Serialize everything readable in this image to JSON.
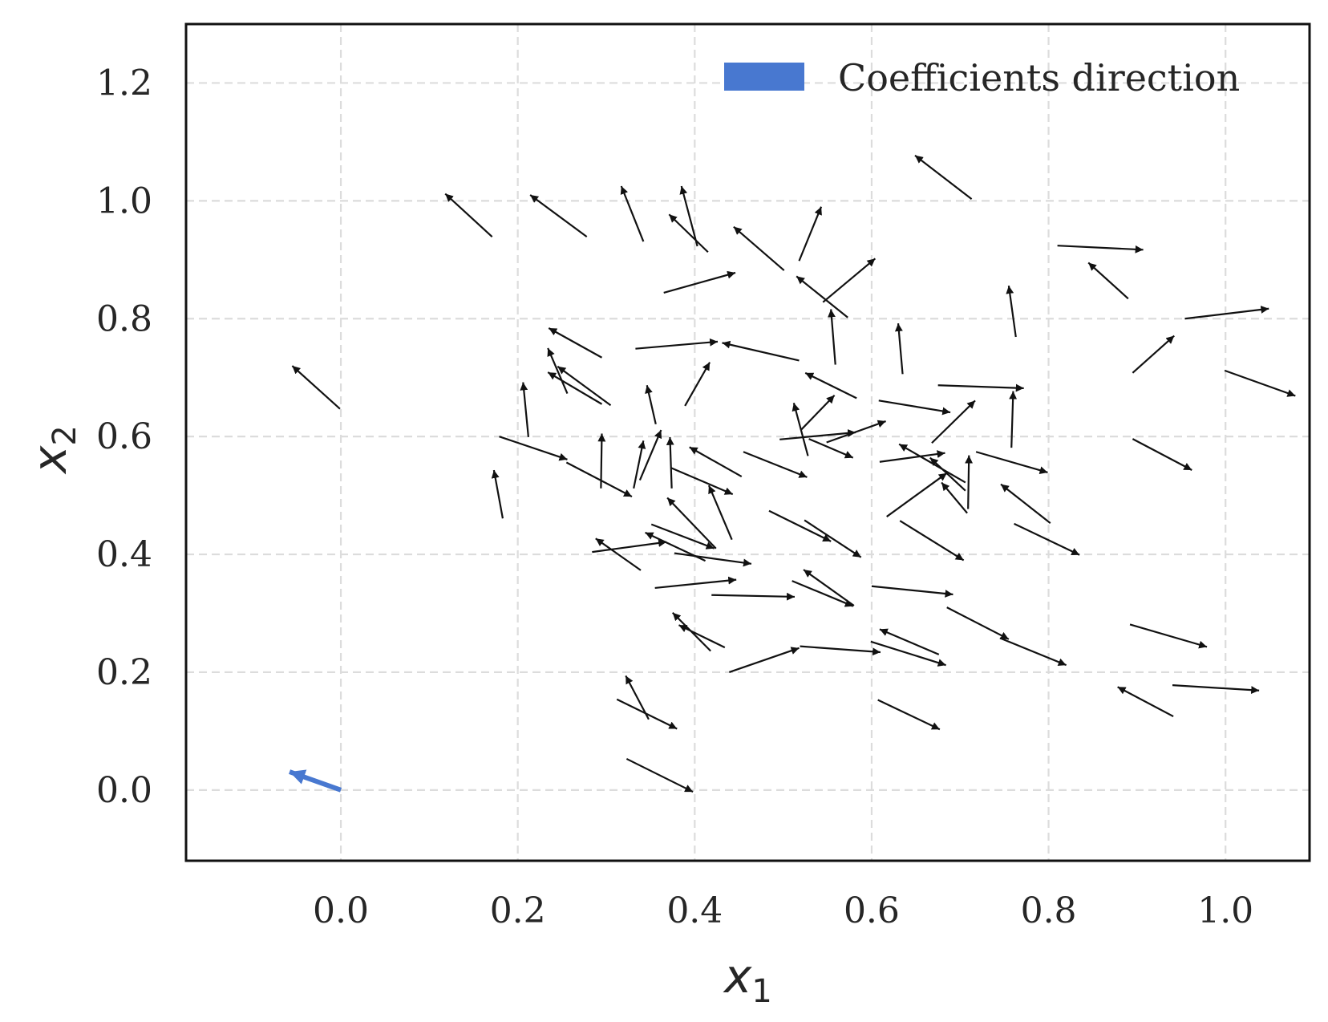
{
  "chart_data": {
    "type": "quiver",
    "title": "",
    "xlabel": "x",
    "xlabel_sub": "1",
    "ylabel": "x",
    "ylabel_sub": "2",
    "xlim": [
      -0.175,
      1.095
    ],
    "ylim": [
      -0.12,
      1.3
    ],
    "grid": true,
    "legend_position": "top-right",
    "x_ticks": [
      "0.0",
      "0.2",
      "0.4",
      "0.6",
      "0.8",
      "1.0"
    ],
    "x_tick_values": [
      0.0,
      0.2,
      0.4,
      0.6,
      0.8,
      1.0
    ],
    "y_ticks": [
      "0.0",
      "0.2",
      "0.4",
      "0.6",
      "0.8",
      "1.0",
      "1.2"
    ],
    "y_tick_values": [
      0.0,
      0.2,
      0.4,
      0.6,
      0.8,
      1.0,
      1.2
    ],
    "colors": {
      "coefficients": "#4878d0",
      "field": "#111111",
      "grid": "#dcdcdc",
      "frame": "#111111"
    },
    "coefficients": {
      "name": "Coefficients direction",
      "x": 0.0,
      "y": 0.0,
      "dx": -0.058,
      "dy": 0.031
    },
    "field": [
      [
        -0.001,
        0.647,
        -0.054,
        0.073
      ],
      [
        0.171,
        0.939,
        -0.053,
        0.073
      ],
      [
        0.278,
        0.939,
        -0.064,
        0.071
      ],
      [
        0.342,
        0.931,
        -0.025,
        0.094
      ],
      [
        0.415,
        0.913,
        -0.044,
        0.064
      ],
      [
        0.403,
        0.923,
        -0.018,
        0.102
      ],
      [
        0.501,
        0.882,
        -0.057,
        0.074
      ],
      [
        0.713,
        1.003,
        -0.064,
        0.074
      ],
      [
        0.518,
        0.898,
        0.025,
        0.092
      ],
      [
        0.365,
        0.844,
        0.081,
        0.034
      ],
      [
        0.573,
        0.802,
        -0.058,
        0.07
      ],
      [
        0.545,
        0.828,
        0.059,
        0.074
      ],
      [
        0.89,
        0.834,
        -0.045,
        0.061
      ],
      [
        0.81,
        0.924,
        0.097,
        -0.007
      ],
      [
        0.763,
        0.769,
        -0.008,
        0.087
      ],
      [
        0.635,
        0.706,
        -0.005,
        0.086
      ],
      [
        0.559,
        0.722,
        -0.005,
        0.094
      ],
      [
        0.518,
        0.729,
        -0.087,
        0.03
      ],
      [
        0.333,
        0.749,
        0.093,
        0.012
      ],
      [
        0.295,
        0.734,
        -0.06,
        0.05
      ],
      [
        0.256,
        0.673,
        -0.022,
        0.077
      ],
      [
        0.295,
        0.655,
        -0.061,
        0.054
      ],
      [
        0.305,
        0.653,
        -0.06,
        0.066
      ],
      [
        0.389,
        0.652,
        0.028,
        0.074
      ],
      [
        0.356,
        0.621,
        -0.01,
        0.066
      ],
      [
        0.212,
        0.599,
        -0.006,
        0.093
      ],
      [
        0.895,
        0.708,
        0.047,
        0.063
      ],
      [
        0.954,
        0.8,
        0.095,
        0.017
      ],
      [
        0.999,
        0.712,
        0.08,
        -0.043
      ],
      [
        0.758,
        0.581,
        0.002,
        0.096
      ],
      [
        0.675,
        0.687,
        0.097,
        -0.005
      ],
      [
        0.583,
        0.665,
        -0.058,
        0.043
      ],
      [
        0.453,
        0.532,
        -0.059,
        0.05
      ],
      [
        0.331,
        0.512,
        0.011,
        0.081
      ],
      [
        0.338,
        0.526,
        0.024,
        0.085
      ],
      [
        0.294,
        0.512,
        0.001,
        0.093
      ],
      [
        0.183,
        0.461,
        -0.01,
        0.082
      ],
      [
        0.179,
        0.6,
        0.077,
        -0.039
      ],
      [
        0.255,
        0.556,
        0.074,
        -0.058
      ],
      [
        0.374,
        0.512,
        -0.002,
        0.087
      ],
      [
        0.373,
        0.547,
        0.07,
        -0.045
      ],
      [
        0.455,
        0.574,
        0.072,
        -0.043
      ],
      [
        0.528,
        0.567,
        -0.016,
        0.09
      ],
      [
        0.529,
        0.596,
        0.05,
        -0.032
      ],
      [
        0.496,
        0.595,
        0.086,
        0.012
      ],
      [
        0.549,
        0.59,
        0.067,
        0.036
      ],
      [
        0.608,
        0.661,
        0.081,
        -0.02
      ],
      [
        0.52,
        0.611,
        0.038,
        0.059
      ],
      [
        0.668,
        0.589,
        0.049,
        0.072
      ],
      [
        0.706,
        0.522,
        -0.075,
        0.065
      ],
      [
        0.706,
        0.508,
        -0.04,
        0.056
      ],
      [
        0.609,
        0.557,
        0.074,
        0.015
      ],
      [
        0.708,
        0.47,
        -0.029,
        0.052
      ],
      [
        0.709,
        0.477,
        0.001,
        0.091
      ],
      [
        0.718,
        0.574,
        0.081,
        -0.035
      ],
      [
        0.802,
        0.453,
        -0.056,
        0.066
      ],
      [
        0.895,
        0.596,
        0.067,
        -0.053
      ],
      [
        0.617,
        0.464,
        0.068,
        0.074
      ],
      [
        0.632,
        0.457,
        0.072,
        -0.067
      ],
      [
        0.761,
        0.452,
        0.074,
        -0.053
      ],
      [
        0.442,
        0.425,
        -0.026,
        0.092
      ],
      [
        0.424,
        0.41,
        -0.055,
        0.086
      ],
      [
        0.351,
        0.451,
        0.071,
        -0.041
      ],
      [
        0.412,
        0.389,
        -0.068,
        0.048
      ],
      [
        0.339,
        0.373,
        -0.051,
        0.054
      ],
      [
        0.284,
        0.404,
        0.084,
        0.017
      ],
      [
        0.377,
        0.402,
        0.087,
        -0.018
      ],
      [
        0.484,
        0.474,
        0.07,
        -0.052
      ],
      [
        0.524,
        0.458,
        0.064,
        -0.063
      ],
      [
        0.355,
        0.343,
        0.092,
        0.014
      ],
      [
        0.419,
        0.331,
        0.094,
        -0.003
      ],
      [
        0.51,
        0.355,
        0.069,
        -0.043
      ],
      [
        0.58,
        0.313,
        -0.057,
        0.061
      ],
      [
        0.6,
        0.346,
        0.092,
        -0.014
      ],
      [
        0.685,
        0.31,
        0.07,
        -0.054
      ],
      [
        0.676,
        0.23,
        -0.067,
        0.043
      ],
      [
        0.418,
        0.236,
        -0.043,
        0.065
      ],
      [
        0.434,
        0.242,
        -0.052,
        0.038
      ],
      [
        0.439,
        0.2,
        0.079,
        0.041
      ],
      [
        0.519,
        0.244,
        0.091,
        -0.01
      ],
      [
        0.599,
        0.252,
        0.085,
        -0.04
      ],
      [
        0.745,
        0.258,
        0.075,
        -0.046
      ],
      [
        0.892,
        0.281,
        0.087,
        -0.038
      ],
      [
        0.941,
        0.125,
        -0.063,
        0.05
      ],
      [
        0.94,
        0.178,
        0.098,
        -0.009
      ],
      [
        0.312,
        0.154,
        0.068,
        -0.05
      ],
      [
        0.348,
        0.12,
        -0.026,
        0.074
      ],
      [
        0.323,
        0.053,
        0.075,
        -0.056
      ],
      [
        0.607,
        0.153,
        0.07,
        -0.05
      ]
    ]
  }
}
